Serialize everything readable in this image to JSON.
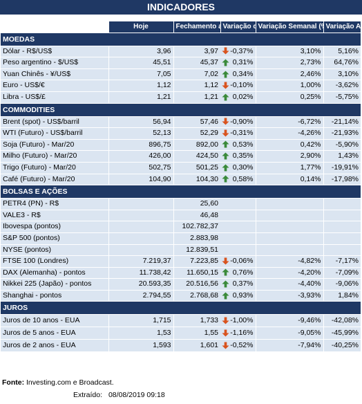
{
  "title": "INDICADORES",
  "columns": {
    "hoje": "Hoje",
    "fechamento": "Fechamento anterior",
    "var_diaria": "Variação diária (%)",
    "var_semanal": "Variação Semanal (%)",
    "var_anual": "Variação Anual (%)"
  },
  "sections": [
    {
      "label": "MOEDAS",
      "rows": [
        {
          "name": "Dólar - R$/US$",
          "hoje": "3,96",
          "fech": "3,97",
          "dir": "down",
          "diaria": "-0,37%",
          "semanal": "3,10%",
          "anual": "5,16%"
        },
        {
          "name": "Peso argentino - $/US$",
          "hoje": "45,51",
          "fech": "45,37",
          "dir": "up",
          "diaria": "0,31%",
          "semanal": "2,73%",
          "anual": "64,76%"
        },
        {
          "name": "Yuan Chinês - ¥/US$",
          "hoje": "7,05",
          "fech": "7,02",
          "dir": "up",
          "diaria": "0,34%",
          "semanal": "2,46%",
          "anual": "3,10%"
        },
        {
          "name": "Euro - US$/€",
          "hoje": "1,12",
          "fech": "1,12",
          "dir": "down",
          "diaria": "-0,10%",
          "semanal": "1,00%",
          "anual": "-3,62%"
        },
        {
          "name": "Libra - US$/£",
          "hoje": "1,21",
          "fech": "1,21",
          "dir": "up",
          "diaria": "0,02%",
          "semanal": "0,25%",
          "anual": "-5,75%"
        }
      ]
    },
    {
      "label": "COMMODITIES",
      "rows": [
        {
          "name": "Brent (spot) - US$/barril",
          "hoje": "56,94",
          "fech": "57,46",
          "dir": "down",
          "diaria": "-0,90%",
          "semanal": "-6,72%",
          "anual": "-21,14%"
        },
        {
          "name": "WTI (Futuro) - US$/barril",
          "hoje": "52,13",
          "fech": "52,29",
          "dir": "down",
          "diaria": "-0,31%",
          "semanal": "-4,26%",
          "anual": "-21,93%"
        },
        {
          "name": "Soja (Futuro) - Mar/20",
          "hoje": "896,75",
          "fech": "892,00",
          "dir": "up",
          "diaria": "0,53%",
          "semanal": "0,42%",
          "anual": "-5,90%"
        },
        {
          "name": "Milho (Futuro) - Mar/20",
          "hoje": "426,00",
          "fech": "424,50",
          "dir": "up",
          "diaria": "0,35%",
          "semanal": "2,90%",
          "anual": "1,43%"
        },
        {
          "name": "Trigo (Futuro) - Mar/20",
          "hoje": "502,75",
          "fech": "501,25",
          "dir": "up",
          "diaria": "0,30%",
          "semanal": "1,77%",
          "anual": "-19,91%"
        },
        {
          "name": "Café (Futuro) - Mar/20",
          "hoje": "104,90",
          "fech": "104,30",
          "dir": "up",
          "diaria": "0,58%",
          "semanal": "0,14%",
          "anual": "-17,98%"
        }
      ]
    },
    {
      "label": "BOLSAS E AÇÕES",
      "rows": [
        {
          "name": "PETR4 (PN) - R$",
          "hoje": "",
          "fech": "25,60",
          "dir": "",
          "diaria": "",
          "semanal": "",
          "anual": ""
        },
        {
          "name": "VALE3 - R$",
          "hoje": "",
          "fech": "46,48",
          "dir": "",
          "diaria": "",
          "semanal": "",
          "anual": ""
        },
        {
          "name": "Ibovespa (pontos)",
          "hoje": "",
          "fech": "102.782,37",
          "dir": "",
          "diaria": "",
          "semanal": "",
          "anual": ""
        },
        {
          "name": "S&P 500 (pontos)",
          "hoje": "",
          "fech": "2.883,98",
          "dir": "",
          "diaria": "",
          "semanal": "",
          "anual": ""
        },
        {
          "name": "NYSE (pontos)",
          "hoje": "",
          "fech": "12.839,51",
          "dir": "",
          "diaria": "",
          "semanal": "",
          "anual": ""
        },
        {
          "name": "FTSE 100 (Londres)",
          "hoje": "7.219,37",
          "fech": "7.223,85",
          "dir": "down",
          "diaria": "-0,06%",
          "semanal": "-4,82%",
          "anual": "-7,17%"
        },
        {
          "name": "DAX (Alemanha) - pontos",
          "hoje": "11.738,42",
          "fech": "11.650,15",
          "dir": "up",
          "diaria": "0,76%",
          "semanal": "-4,20%",
          "anual": "-7,09%"
        },
        {
          "name": "Nikkei 225 (Japão) - pontos",
          "hoje": "20.593,35",
          "fech": "20.516,56",
          "dir": "up",
          "diaria": "0,37%",
          "semanal": "-4,40%",
          "anual": "-9,06%"
        },
        {
          "name": "Shanghai - pontos",
          "hoje": "2.794,55",
          "fech": "2.768,68",
          "dir": "up",
          "diaria": "0,93%",
          "semanal": "-3,93%",
          "anual": "1,84%"
        }
      ]
    },
    {
      "label": "JUROS",
      "rows": [
        {
          "name": "Juros de 10 anos - EUA",
          "hoje": "1,715",
          "fech": "1,733",
          "dir": "down",
          "diaria": "-1,00%",
          "semanal": "-9,46%",
          "anual": "-42,08%"
        },
        {
          "name": "Juros de 5 anos - EUA",
          "hoje": "1,53",
          "fech": "1,55",
          "dir": "down",
          "diaria": "-1,16%",
          "semanal": "-9,05%",
          "anual": "-45,99%"
        },
        {
          "name": "Juros de 2 anos - EUA",
          "hoje": "1,593",
          "fech": "1,601",
          "dir": "down",
          "diaria": "-0,52%",
          "semanal": "-7,94%",
          "anual": "-40,25%"
        }
      ]
    }
  ],
  "footer": {
    "fonte_label": "Fonte:",
    "fonte_text": " Investing.com e Broadcast.",
    "extraido_label": "Extraído:",
    "extraido_value": "08/08/2019 09:18"
  },
  "colors": {
    "header_bg": "#1f3864",
    "row_bg": "#dbe5f1",
    "up_arrow": "#3a8a3a",
    "down_arrow": "#d9531e"
  }
}
